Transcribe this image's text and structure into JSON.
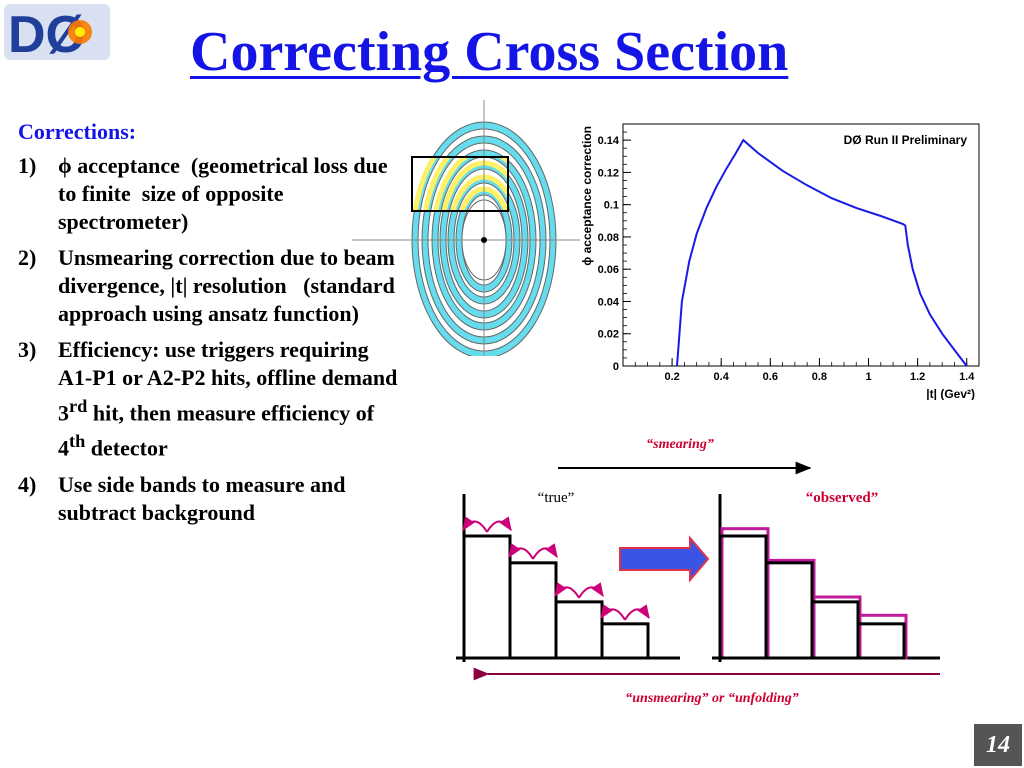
{
  "header": {
    "title": "Correcting Cross Section",
    "logo_text": "DØ"
  },
  "corrections": {
    "heading": "Corrections:",
    "items": [
      {
        "num": "1)",
        "text": "ϕ acceptance  (geometrical loss due to finite  size of opposite spectrometer)"
      },
      {
        "num": "2)",
        "text": "Unsmearing correction due to beam divergence, |t| resolution   (standard approach using ansatz function)"
      },
      {
        "num": "3)",
        "text": "Efficiency: use triggers requiring A1-P1 or A2-P2 hits, offline demand 3",
        "sup1": "rd",
        "text2": " hit, then measure efficiency of 4",
        "sup2": "th",
        "text3": " detector"
      },
      {
        "num": "4)",
        "text": "Use side bands to measure and subtract background"
      }
    ]
  },
  "chart_data": {
    "type": "line",
    "title": "DØ Run II Preliminary",
    "xlabel": "|t| (Gev²)",
    "ylabel": "ϕ acceptance correction",
    "xlim": [
      0.0,
      1.45
    ],
    "ylim": [
      0,
      0.15
    ],
    "xticks": [
      "0.2",
      "0.4",
      "0.6",
      "0.8",
      "1",
      "1.2",
      "1.4"
    ],
    "yticks": [
      "0",
      "0.02",
      "0.04",
      "0.06",
      "0.08",
      "0.1",
      "0.12",
      "0.14"
    ],
    "grid": false,
    "series": [
      {
        "x": [
          0.22,
          0.24,
          0.27,
          0.3,
          0.34,
          0.38,
          0.42,
          0.46,
          0.49,
          0.55,
          0.65,
          0.75,
          0.85,
          0.95,
          1.05,
          1.14,
          1.15,
          1.16,
          1.18,
          1.21,
          1.25,
          1.3,
          1.35,
          1.4
        ],
        "y": [
          0.0,
          0.04,
          0.065,
          0.082,
          0.098,
          0.111,
          0.122,
          0.132,
          0.14,
          0.132,
          0.121,
          0.112,
          0.104,
          0.098,
          0.093,
          0.088,
          0.087,
          0.075,
          0.06,
          0.045,
          0.032,
          0.02,
          0.01,
          0.0
        ],
        "color": "#1a1ae6"
      }
    ]
  },
  "diagram": {
    "smearing_label": "“smearing”",
    "true_label": "“true”",
    "observed_label": "“observed”",
    "unsmearing_label": "“unsmearing” or “unfolding”",
    "true_hist": [
      1.0,
      0.78,
      0.46,
      0.28
    ],
    "observed_hist": [
      1.06,
      0.8,
      0.5,
      0.35
    ],
    "colors": {
      "smear_arrow": "#cc0077",
      "histogram_overlay": "#c0199a",
      "big_arrow": "#3a55e6",
      "cyan_ring": "#66ddee",
      "yellow_ring": "#fff066"
    }
  },
  "footer": {
    "page_number": "14"
  }
}
